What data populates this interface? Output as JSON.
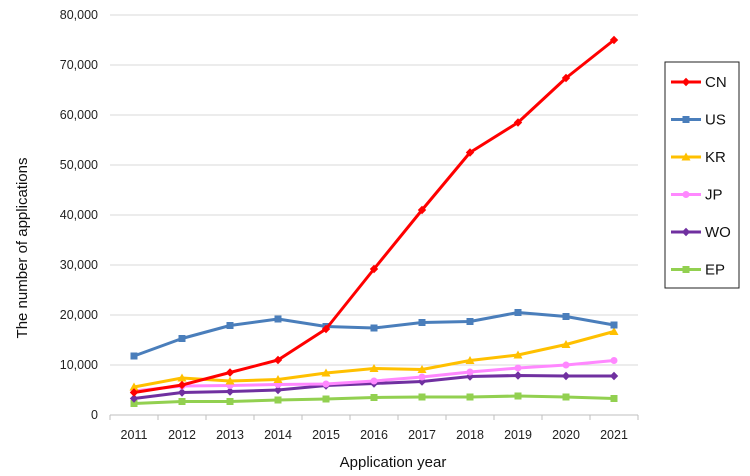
{
  "chart_data": {
    "type": "line",
    "title": "",
    "xlabel": "Application year",
    "ylabel": "The number of applications",
    "x": [
      2011,
      2012,
      2013,
      2014,
      2015,
      2016,
      2017,
      2018,
      2019,
      2020,
      2021
    ],
    "x_tick_labels": [
      "2011",
      "2012",
      "2013",
      "2014",
      "2015",
      "2016",
      "2017",
      "2018",
      "2019",
      "2020",
      "2021"
    ],
    "ylim": [
      0,
      80000
    ],
    "y_ticks": [
      0,
      10000,
      20000,
      30000,
      40000,
      50000,
      60000,
      70000,
      80000
    ],
    "y_tick_labels": [
      "0",
      "10,000",
      "20,000",
      "30,000",
      "40,000",
      "50,000",
      "60,000",
      "70,000",
      "80,000"
    ],
    "grid": "horizontal",
    "legend_position": "right",
    "series": [
      {
        "name": "CN",
        "color": "#ff0000",
        "marker": "diamond",
        "values": [
          4500,
          6000,
          8500,
          11000,
          17200,
          29200,
          41000,
          52500,
          58500,
          67400,
          75000
        ]
      },
      {
        "name": "US",
        "color": "#4a7ebb",
        "marker": "square",
        "values": [
          11800,
          15300,
          17900,
          19200,
          17700,
          17400,
          18500,
          18700,
          20500,
          19700,
          18000
        ]
      },
      {
        "name": "KR",
        "color": "#ffc000",
        "marker": "triangle",
        "values": [
          5600,
          7400,
          6800,
          7100,
          8400,
          9300,
          9100,
          10900,
          12000,
          14100,
          16700
        ]
      },
      {
        "name": "JP",
        "color": "#ff88ff",
        "marker": "circle",
        "values": [
          4800,
          5800,
          5900,
          6100,
          6200,
          6800,
          7600,
          8600,
          9400,
          10000,
          10900
        ]
      },
      {
        "name": "WO",
        "color": "#7030a0",
        "marker": "diamond",
        "values": [
          3300,
          4500,
          4700,
          5000,
          5900,
          6300,
          6700,
          7700,
          7900,
          7800,
          7800
        ]
      },
      {
        "name": "EP",
        "color": "#92d050",
        "marker": "square",
        "values": [
          2300,
          2700,
          2700,
          3000,
          3200,
          3500,
          3600,
          3600,
          3800,
          3600,
          3300
        ]
      }
    ]
  }
}
